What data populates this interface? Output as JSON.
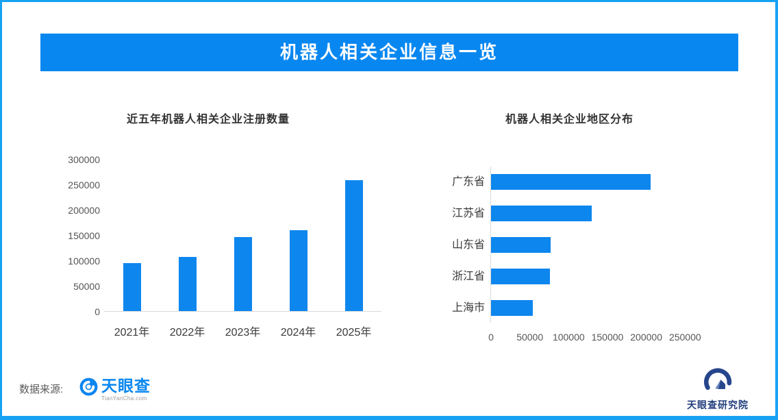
{
  "banner": {
    "title": "机器人相关企业信息一览"
  },
  "colors": {
    "accent": "#0887f0",
    "bar_blue": "#0d86ee",
    "frame_border": "#17a2f3",
    "axis_line": "#d9d9d9",
    "research_navy": "#26458c"
  },
  "chart_data": [
    {
      "type": "bar",
      "title": "近五年机器人相关企业注册数量",
      "categories": [
        "2021年",
        "2022年",
        "2023年",
        "2024年",
        "2025年"
      ],
      "values": [
        95000,
        107000,
        146000,
        160000,
        258000
      ],
      "xlabel": "",
      "ylabel": "",
      "ylim": [
        0,
        300000
      ],
      "yticks": [
        0,
        50000,
        100000,
        150000,
        200000,
        250000,
        300000
      ],
      "grid": false,
      "legend": "none",
      "bar_color": "#0d86ee"
    },
    {
      "type": "bar",
      "orientation": "horizontal",
      "title": "机器人相关企业地区分布",
      "categories": [
        "广东省",
        "江苏省",
        "山东省",
        "浙江省",
        "上海市"
      ],
      "values": [
        206000,
        130000,
        77000,
        76000,
        54000
      ],
      "xlabel": "",
      "ylabel": "",
      "xlim": [
        0,
        250000
      ],
      "xticks": [
        0,
        50000,
        100000,
        150000,
        200000,
        250000
      ],
      "grid": false,
      "legend": "none",
      "bar_color": "#0d86ee"
    }
  ],
  "footer": {
    "source_label": "数据来源:",
    "tyc_name": "天眼查",
    "tyc_domain": "TianYanCha.com",
    "research_name": "天眼查研究院"
  }
}
